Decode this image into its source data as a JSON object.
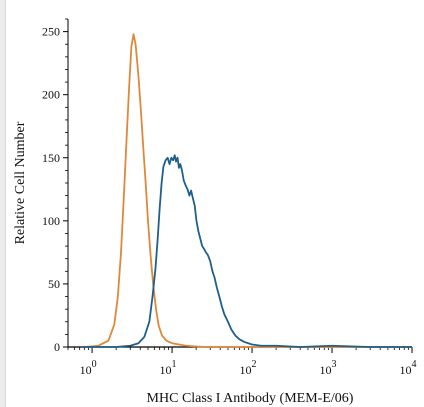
{
  "chart_data": {
    "type": "line",
    "title": "",
    "xlabel": "MHC Class I Antibody (MEM-E/06)",
    "ylabel": "Relative Cell Number",
    "xscale": "log",
    "xlim": [
      0.5,
      10000
    ],
    "ylim": [
      0,
      260
    ],
    "x_ticks": [
      {
        "base": "10",
        "exp": "0",
        "value": 1
      },
      {
        "base": "10",
        "exp": "1",
        "value": 10
      },
      {
        "base": "10",
        "exp": "2",
        "value": 100
      },
      {
        "base": "10",
        "exp": "3",
        "value": 1000
      },
      {
        "base": "10",
        "exp": "4",
        "value": 10000
      }
    ],
    "y_ticks": [
      {
        "label": "0",
        "value": 0
      },
      {
        "label": "50",
        "value": 50
      },
      {
        "label": "100",
        "value": 100
      },
      {
        "label": "150",
        "value": 150
      },
      {
        "label": "200",
        "value": 200
      },
      {
        "label": "250",
        "value": 250
      }
    ],
    "grid": false,
    "legend": "none",
    "series": [
      {
        "color": "#e0883a",
        "points": [
          [
            0.8,
            0
          ],
          [
            1.2,
            1
          ],
          [
            1.6,
            5
          ],
          [
            1.9,
            18
          ],
          [
            2.1,
            40
          ],
          [
            2.3,
            75
          ],
          [
            2.5,
            120
          ],
          [
            2.7,
            165
          ],
          [
            2.9,
            205
          ],
          [
            3.1,
            238
          ],
          [
            3.3,
            248
          ],
          [
            3.5,
            240
          ],
          [
            3.8,
            215
          ],
          [
            4.1,
            185
          ],
          [
            4.4,
            155
          ],
          [
            4.7,
            128
          ],
          [
            5.0,
            100
          ],
          [
            5.4,
            72
          ],
          [
            5.8,
            50
          ],
          [
            6.3,
            30
          ],
          [
            6.8,
            17
          ],
          [
            7.5,
            9
          ],
          [
            8.5,
            5
          ],
          [
            10,
            3
          ],
          [
            15,
            1
          ],
          [
            25,
            0
          ],
          [
            10000,
            0
          ]
        ]
      },
      {
        "color": "#1f5f8b",
        "points": [
          [
            0.8,
            0
          ],
          [
            2.0,
            0
          ],
          [
            3.0,
            1
          ],
          [
            3.8,
            3
          ],
          [
            4.5,
            8
          ],
          [
            5.2,
            20
          ],
          [
            5.7,
            40
          ],
          [
            6.2,
            62
          ],
          [
            6.6,
            85
          ],
          [
            7.0,
            110
          ],
          [
            7.4,
            130
          ],
          [
            7.8,
            143
          ],
          [
            8.3,
            148
          ],
          [
            8.8,
            150
          ],
          [
            9.3,
            145
          ],
          [
            9.8,
            150
          ],
          [
            10.3,
            148
          ],
          [
            10.8,
            152
          ],
          [
            11.2,
            147
          ],
          [
            11.7,
            150
          ],
          [
            12.2,
            142
          ],
          [
            12.7,
            145
          ],
          [
            13.3,
            140
          ],
          [
            14.0,
            132
          ],
          [
            14.8,
            128
          ],
          [
            15.6,
            125
          ],
          [
            16.5,
            120
          ],
          [
            17.3,
            124
          ],
          [
            18.2,
            118
          ],
          [
            19.2,
            112
          ],
          [
            20.2,
            100
          ],
          [
            21.3,
            92
          ],
          [
            22.5,
            86
          ],
          [
            23.8,
            80
          ],
          [
            25.0,
            78
          ],
          [
            26.5,
            75
          ],
          [
            28.0,
            73
          ],
          [
            30.0,
            68
          ],
          [
            32.0,
            60
          ],
          [
            34.0,
            55
          ],
          [
            36.0,
            48
          ],
          [
            39.0,
            40
          ],
          [
            42.0,
            32
          ],
          [
            45.0,
            26
          ],
          [
            50.0,
            20
          ],
          [
            55.0,
            14
          ],
          [
            62.0,
            9
          ],
          [
            70.0,
            6
          ],
          [
            80.0,
            4
          ],
          [
            100,
            2
          ],
          [
            130,
            1
          ],
          [
            200,
            1
          ],
          [
            400,
            0
          ],
          [
            1000,
            1
          ],
          [
            3000,
            0
          ],
          [
            10000,
            0
          ]
        ]
      }
    ]
  }
}
